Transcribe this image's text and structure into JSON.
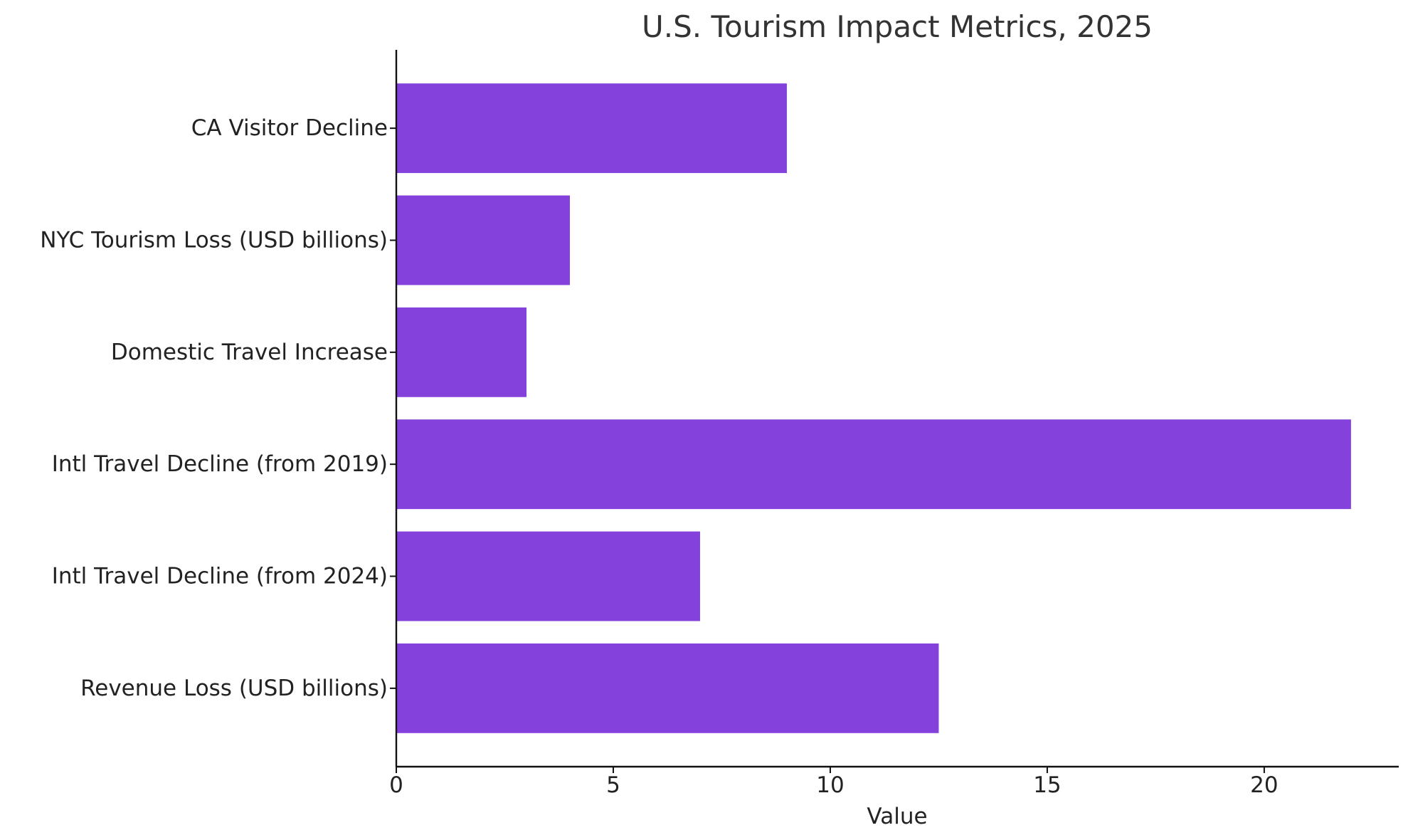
{
  "chart_data": {
    "type": "bar",
    "orientation": "horizontal",
    "title": "U.S. Tourism Impact Metrics, 2025",
    "xlabel": "Value",
    "ylabel": "",
    "categories": [
      "CA Visitor Decline",
      "NYC Tourism Loss (USD billions)",
      "Domestic Travel Increase",
      "Intl Travel Decline (from 2019)",
      "Intl Travel Decline (from 2024)",
      "Revenue Loss (USD billions)"
    ],
    "values": [
      9,
      4,
      3,
      22,
      7,
      12.5
    ],
    "xlim": [
      0,
      23.1
    ],
    "xticks": [
      0,
      5,
      10,
      15,
      20
    ],
    "bar_color": "#8541dc",
    "grid": false,
    "legend": "none"
  }
}
